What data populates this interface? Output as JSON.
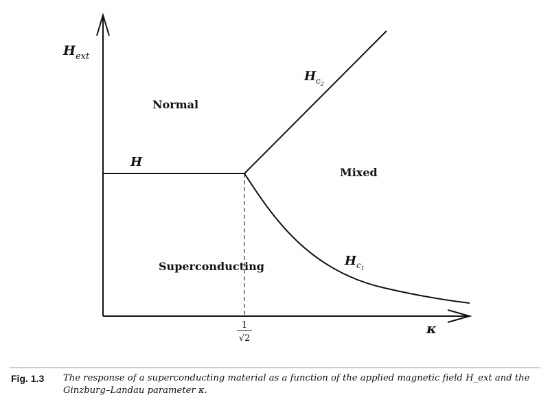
{
  "figure": {
    "axis_y_label_main": "H",
    "axis_y_label_sub": "ext",
    "axis_x_label": "κ",
    "tick_x_numerator": "1",
    "tick_x_denominator": "√2",
    "region_normal": "Normal",
    "region_mixed": "Mixed",
    "region_superconducting": "Superconducting",
    "curve_h_label": "H",
    "curve_hc2_main": "H",
    "curve_hc2_sub": "c",
    "curve_hc2_subsub": "2",
    "curve_hc1_main": "H",
    "curve_hc1_sub": "c",
    "curve_hc1_subsub": "1"
  },
  "caption": {
    "label": "Fig. 1.3",
    "text": "The response of a superconducting material as a function of the applied magnetic field H_ext and the Ginzburg–Landau parameter κ."
  }
}
